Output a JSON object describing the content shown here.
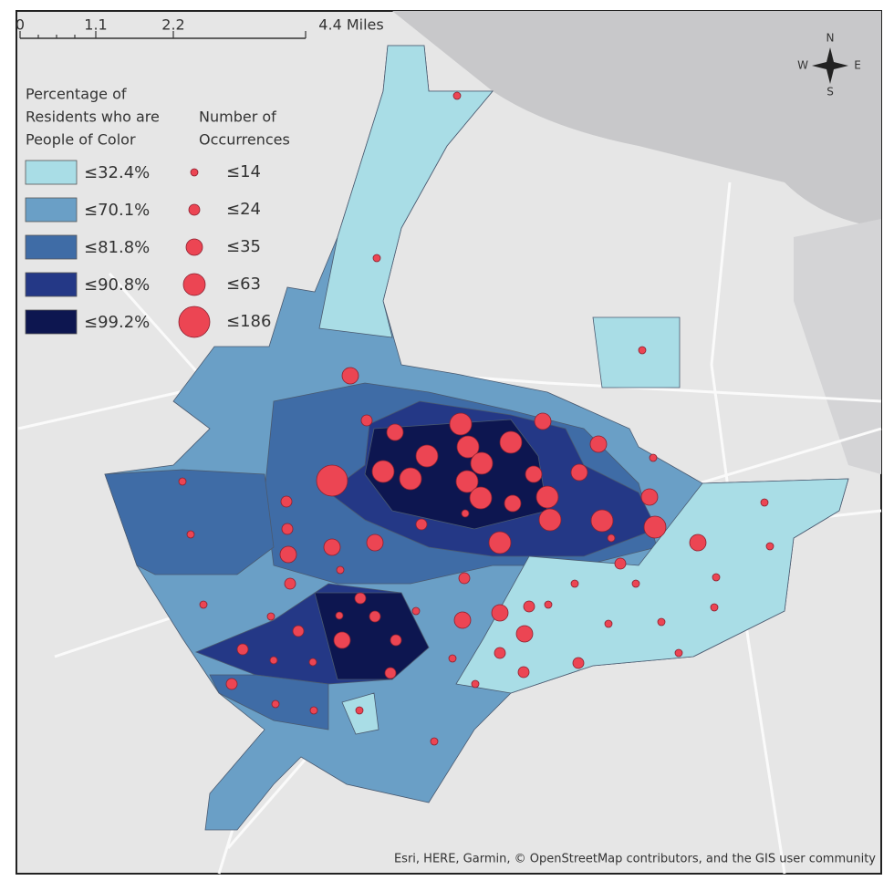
{
  "scale_bar": {
    "labels": [
      "0",
      "1.1",
      "2.2",
      "4.4 Miles"
    ]
  },
  "compass": {
    "n": "N",
    "s": "S",
    "e": "E",
    "w": "W"
  },
  "legend": {
    "fill_title_lines": [
      "Percentage of",
      "Residents who are",
      "People of Color"
    ],
    "fill_items": [
      {
        "label": "≤32.4%",
        "color": "#a9dde6"
      },
      {
        "label": "≤70.1%",
        "color": "#6a9fc6"
      },
      {
        "label": "≤81.8%",
        "color": "#3f6ca6"
      },
      {
        "label": "≤90.8%",
        "color": "#243886"
      },
      {
        "label": "≤99.2%",
        "color": "#0d1650"
      }
    ],
    "symbol_title_lines": [
      "Number of",
      "Occurrences"
    ],
    "symbol_items": [
      "≤14",
      "≤24",
      "≤35",
      "≤63",
      "≤186"
    ],
    "symbol_color": "#ec4553"
  },
  "attribution": "Esri, HERE, Garmin, © OpenStreetMap contributors, and the GIS user community"
}
